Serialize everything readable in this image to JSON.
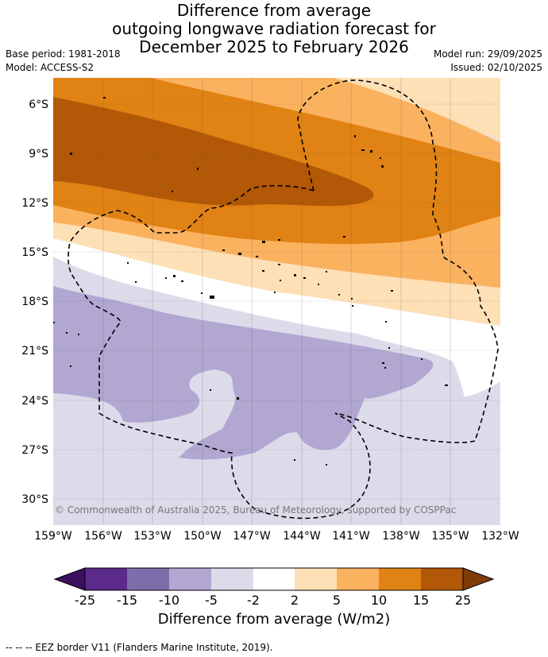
{
  "title": {
    "line1": "Difference from average",
    "line2": "outgoing longwave radiation forecast for",
    "line3": "December 2025 to February 2026"
  },
  "meta": {
    "base_period": "Base period: 1981-2018",
    "model": "Model: ACCESS-S2",
    "model_run": "Model run: 29/09/2025",
    "issued": "Issued: 02/10/2025"
  },
  "map": {
    "lat_labels": [
      "6°S",
      "9°S",
      "12°S",
      "15°S",
      "18°S",
      "21°S",
      "24°S",
      "27°S",
      "30°S"
    ],
    "lon_labels": [
      "159°W",
      "156°W",
      "153°W",
      "150°W",
      "147°W",
      "144°W",
      "141°W",
      "138°W",
      "135°W",
      "132°W"
    ],
    "copyright": "© Commonwealth of Australia 2025, Bureau of Meteorology, supported by COSPPac"
  },
  "colorbar": {
    "labels": [
      "-25",
      "-15",
      "-10",
      "-5",
      "-2",
      "2",
      "5",
      "10",
      "15",
      "25"
    ],
    "colors": [
      "#3d0f5e",
      "#5b2a8a",
      "#7d6eab",
      "#b1a7d1",
      "#dcdbea",
      "#ffffff",
      "#fde0b6",
      "#fbb25e",
      "#e08214",
      "#b35806",
      "#7f3b08"
    ],
    "title": "Difference from average (W/m2)"
  },
  "legend": {
    "text": "--  --  -- EEZ border V11 (Flanders Marine Institute, 2019)."
  }
}
